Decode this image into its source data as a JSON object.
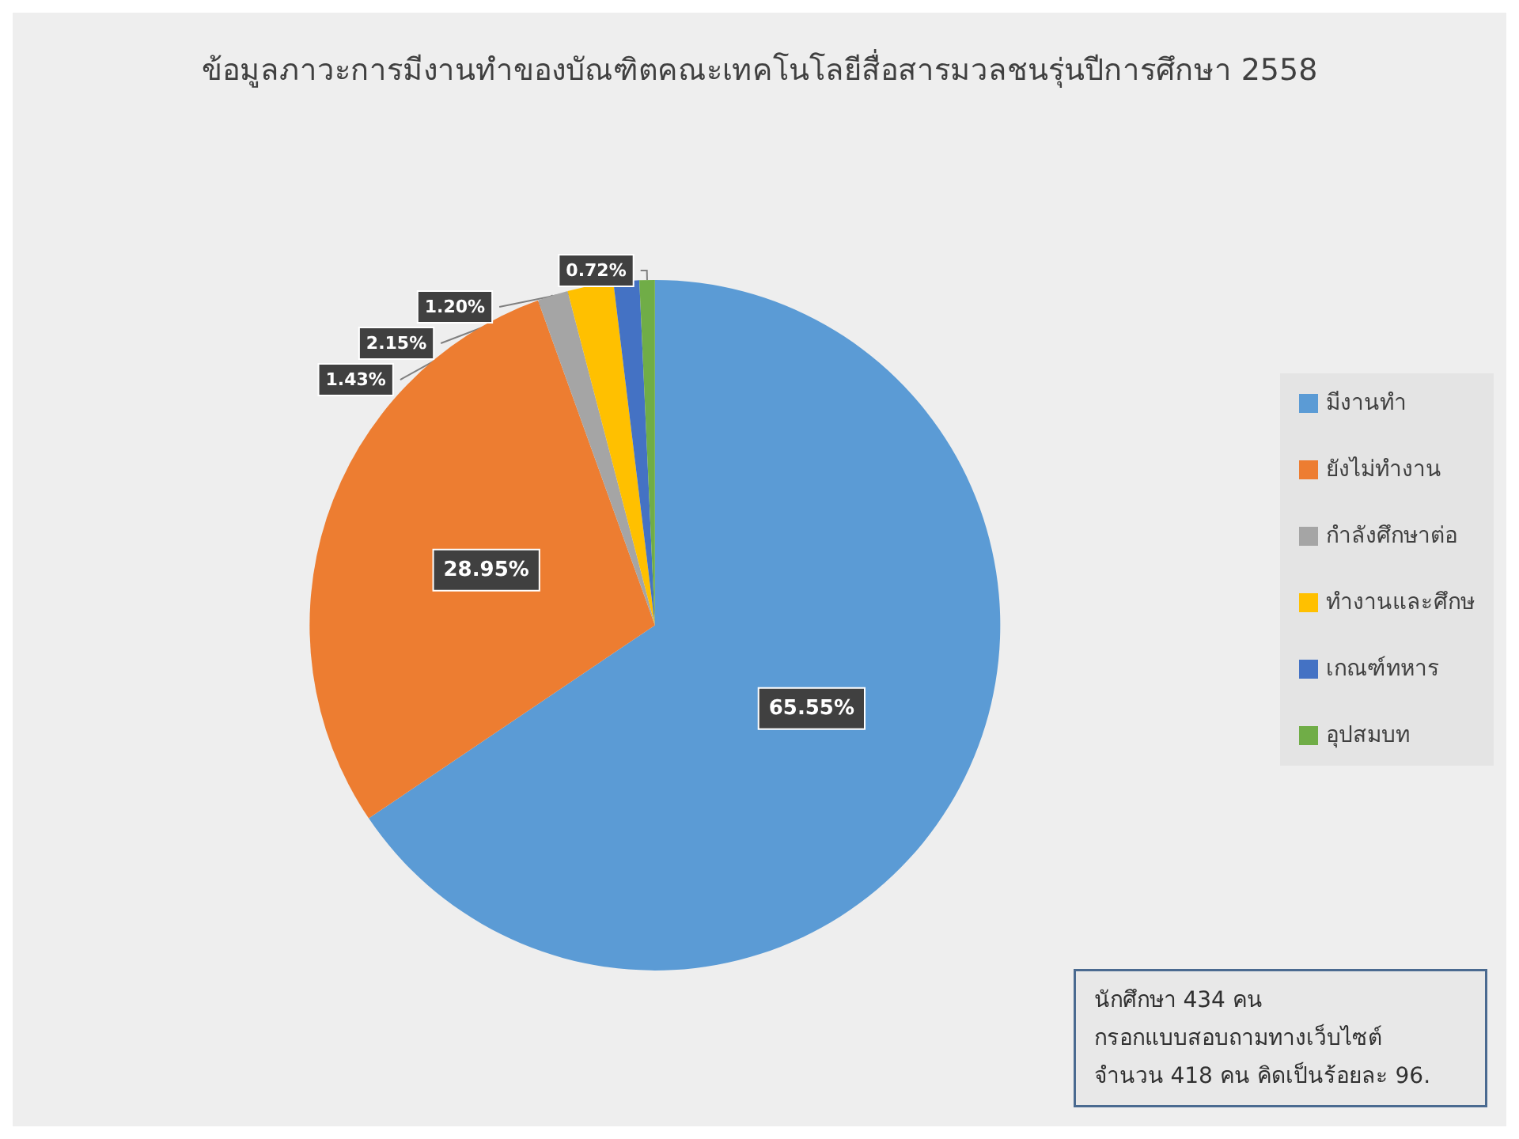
{
  "chart_data": {
    "type": "pie",
    "title": "ข้อมูลภาวะการมีงานทำของบัณฑิตคณะเทคโนโลยีสื่อสารมวลชนรุ่นปีการศึกษา 2558",
    "categories": [
      "มีงานทำ",
      "ยังไม่ทำงาน",
      "กำลังศึกษาต่อ",
      "ทำงานและศึกษ",
      "เกณฑ์ทหาร",
      "อุปสมบท"
    ],
    "values": [
      65.55,
      28.95,
      1.43,
      2.15,
      1.2,
      0.72
    ],
    "colors": [
      "#5b9bd5",
      "#ed7d31",
      "#a5a5a5",
      "#ffc000",
      "#4472c4",
      "#70ad47"
    ],
    "value_labels": [
      "65.55%",
      "28.95%",
      "1.43%",
      "2.15%",
      "1.20%",
      "0.72%"
    ],
    "legend": "right",
    "annotations": [
      "นักศึกษา 434 คน",
      "กรอกแบบสอบถามทางเว็บไซต์",
      "จำนวน 418 คน คิดเป็นร้อยละ 96."
    ]
  }
}
